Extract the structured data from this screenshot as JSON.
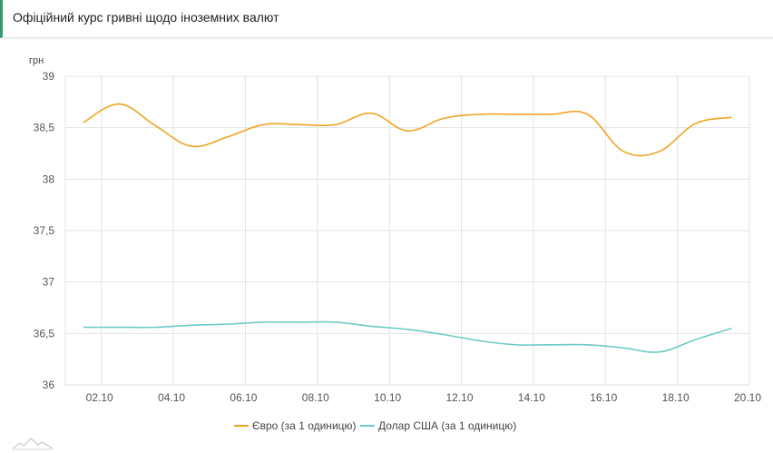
{
  "header": {
    "title": "Офіційний курс гривні щодо іноземних валют"
  },
  "chart_data": {
    "type": "line",
    "title": "",
    "xlabel": "",
    "ylabel": "грн",
    "ylim": [
      36,
      39
    ],
    "yticks": [
      "36",
      "36,5",
      "37",
      "37,5",
      "38",
      "38,5",
      "39"
    ],
    "ytick_values": [
      36,
      36.5,
      37,
      37.5,
      38,
      38.5,
      39
    ],
    "xticks": [
      "02.10",
      "04.10",
      "06.10",
      "08.10",
      "10.10",
      "12.10",
      "14.10",
      "16.10",
      "18.10",
      "20.10"
    ],
    "xtick_days": [
      2,
      4,
      6,
      8,
      10,
      12,
      14,
      16,
      18,
      20
    ],
    "x_days": [
      1.5,
      2.5,
      3.5,
      4.5,
      5.5,
      6.5,
      7.5,
      8.5,
      9.5,
      10.5,
      11.5,
      12.5,
      13.5,
      14.5,
      15.5,
      16.5,
      17.5,
      18.5,
      19.5
    ],
    "grid": true,
    "legend_position": "bottom",
    "series": [
      {
        "name": "Євро (за 1 одиницю)",
        "color": "#f0a422",
        "values": [
          38.55,
          38.73,
          38.52,
          38.32,
          38.41,
          38.53,
          38.53,
          38.53,
          38.64,
          38.47,
          38.59,
          38.63,
          38.63,
          38.63,
          38.63,
          38.27,
          38.27,
          38.54,
          38.6
        ]
      },
      {
        "name": "Долар США (за 1 одиницю)",
        "color": "#6dcbc8",
        "values": [
          36.56,
          36.56,
          36.56,
          36.58,
          36.59,
          36.61,
          36.61,
          36.61,
          36.57,
          36.54,
          36.49,
          36.43,
          36.39,
          36.39,
          36.39,
          36.36,
          36.32,
          36.44,
          36.55
        ]
      }
    ]
  }
}
